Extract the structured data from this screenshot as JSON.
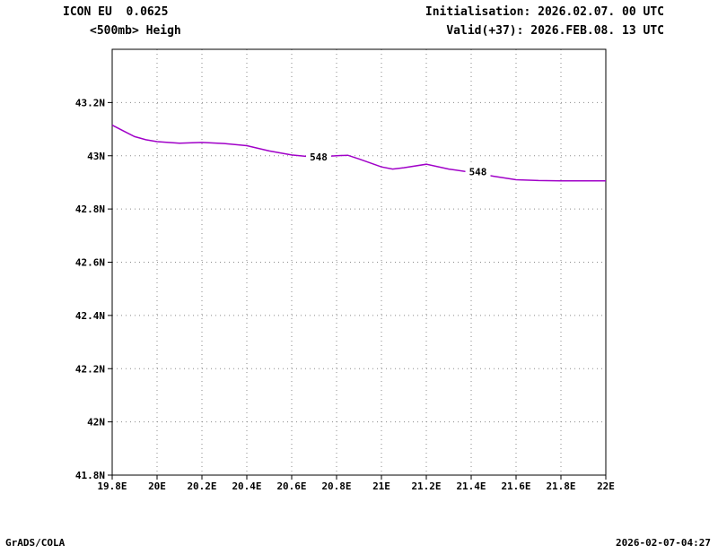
{
  "header": {
    "model_line": "ICON EU  0.0625",
    "variable_line": "<500mb> Heigh",
    "init_line": "Initialisation: 2026.02.07. 00 UTC",
    "valid_line": "Valid(+37): 2026.FEB.08. 13 UTC"
  },
  "footer": {
    "left": "GrADS/COLA",
    "right": "2026-02-07-04:27"
  },
  "colors": {
    "contour": "#A000C8",
    "grid": "#8A8A8A",
    "text": "#000000",
    "background": "#FFFFFF"
  },
  "chart_data": {
    "type": "line",
    "title": "<500mb> Heigh",
    "xlabel": "",
    "ylabel": "",
    "xlim": [
      19.8,
      22.0
    ],
    "ylim": [
      41.8,
      43.4
    ],
    "grid": "dotted",
    "legend": "none",
    "x_ticks": [
      19.8,
      20,
      20.2,
      20.4,
      20.6,
      20.8,
      21,
      21.2,
      21.4,
      21.6,
      21.8,
      22
    ],
    "x_tick_labels": [
      "19.8E",
      "20E",
      "20.2E",
      "20.4E",
      "20.6E",
      "20.8E",
      "21E",
      "21.2E",
      "21.4E",
      "21.6E",
      "21.8E",
      "22E"
    ],
    "y_ticks": [
      41.8,
      42,
      42.2,
      42.4,
      42.6,
      42.8,
      43,
      43.2
    ],
    "y_tick_labels": [
      "41.8N",
      "42N",
      "42.2N",
      "42.4N",
      "42.6N",
      "42.8N",
      "43N",
      "43.2N"
    ],
    "series": [
      {
        "name": "500mb height contour 548 dam",
        "color": "#A000C8",
        "x": [
          19.8,
          19.85,
          19.9,
          19.95,
          20.0,
          20.1,
          20.2,
          20.3,
          20.4,
          20.5,
          20.6,
          20.7,
          20.8,
          20.85,
          20.9,
          21.0,
          21.05,
          21.1,
          21.2,
          21.3,
          21.4,
          21.5,
          21.6,
          21.7,
          21.8,
          21.9,
          22.0
        ],
        "y": [
          43.115,
          43.093,
          43.072,
          43.06,
          43.053,
          43.047,
          43.05,
          43.046,
          43.038,
          43.018,
          43.003,
          42.995,
          43.0,
          43.002,
          42.988,
          42.958,
          42.95,
          42.955,
          42.968,
          42.95,
          42.938,
          42.923,
          42.91,
          42.907,
          42.906,
          42.906,
          42.906
        ],
        "labels": [
          {
            "text": "548",
            "x": 20.72,
            "y": 42.995
          },
          {
            "text": "548",
            "x": 21.43,
            "y": 42.94
          }
        ]
      }
    ]
  }
}
